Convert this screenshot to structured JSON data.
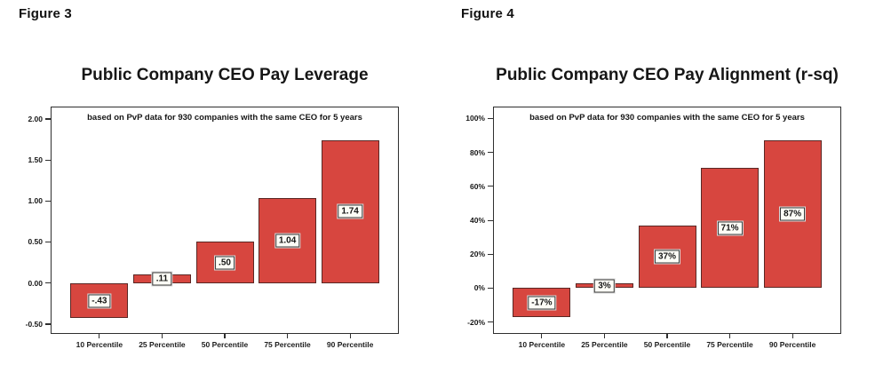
{
  "page": {
    "background_color": "#ffffff"
  },
  "chart_data": [
    {
      "type": "bar",
      "figure_label": "Figure 3",
      "title": "Public Company CEO Pay Leverage",
      "subtitle": "based on PvP data for 930 companies with the same CEO for 5 years",
      "categories": [
        "10 Percentile",
        "25 Percentile",
        "50 Percentile",
        "75 Percentile",
        "90 Percentile"
      ],
      "values": [
        -0.43,
        0.11,
        0.5,
        1.04,
        1.74
      ],
      "value_labels": [
        "-.43",
        ".11",
        ".50",
        "1.04",
        "1.74"
      ],
      "ytick_values": [
        2.0,
        1.5,
        1.0,
        0.5,
        0.0,
        -0.5
      ],
      "ytick_labels": [
        "2.00",
        "1.50",
        "1.00",
        "0.50",
        "0.00",
        "-0.50"
      ],
      "ylim": [
        -0.62,
        2.15
      ],
      "xlabel": "",
      "ylabel": "",
      "grid": false,
      "legend": null,
      "bar_color": "#d7463f",
      "bar_border_color": "#5a2724",
      "frame_color": "#2f2f2f"
    },
    {
      "type": "bar",
      "figure_label": "Figure 4",
      "title": "Public Company CEO Pay Alignment (r-sq)",
      "subtitle": "based on PvP data for 930 companies with the same CEO for 5 years",
      "categories": [
        "10 Percentile",
        "25 Percentile",
        "50 Percentile",
        "75 Percentile",
        "90 Percentile"
      ],
      "values": [
        -17,
        3,
        37,
        71,
        87
      ],
      "value_labels": [
        "-17%",
        "3%",
        "37%",
        "71%",
        "87%"
      ],
      "ytick_values": [
        100,
        80,
        60,
        40,
        20,
        0,
        -20
      ],
      "ytick_labels": [
        "100%",
        "80%",
        "60%",
        "40%",
        "20%",
        "0%",
        "-20%"
      ],
      "ylim": [
        -27,
        107
      ],
      "xlabel": "",
      "ylabel": "",
      "grid": false,
      "legend": null,
      "bar_color": "#d7463f",
      "bar_border_color": "#5a2724",
      "frame_color": "#2f2f2f"
    }
  ]
}
